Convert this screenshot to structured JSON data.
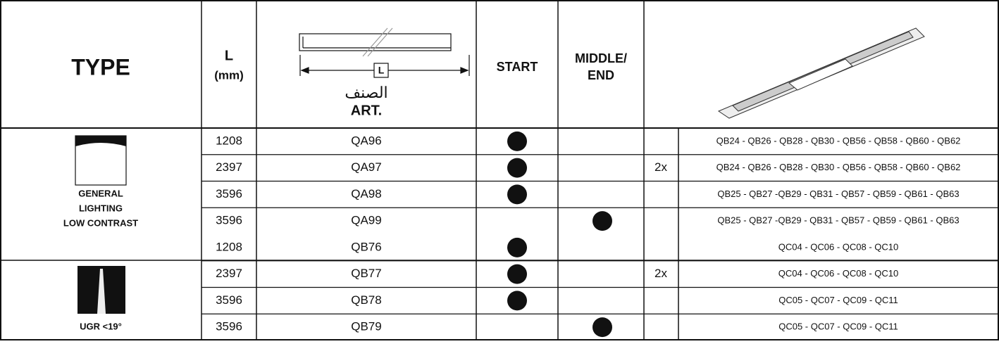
{
  "header": {
    "type": "TYPE",
    "length": "L",
    "length_unit": "(mm)",
    "diagram_label": "L",
    "art_arabic": "الصنف",
    "art": "ART.",
    "start": "START",
    "middle_end": [
      "MIDDLE/",
      "END"
    ]
  },
  "groups": [
    {
      "label": [
        "GENERAL",
        "LIGHTING",
        "LOW CONTRAST"
      ],
      "rows": [
        {
          "length": "1208",
          "art": "QA96",
          "start": true,
          "middle": false,
          "qty": null,
          "codes": "QB24 - QB26 - QB28 - QB30 - QB56 - QB58 - QB60 - QB62"
        },
        {
          "length": "2397",
          "art": "QA97",
          "start": true,
          "middle": false,
          "qty": "2x",
          "codes": "QB24 - QB26 - QB28 - QB30 - QB56 - QB58 - QB60 - QB62"
        },
        {
          "length": "3596",
          "art": "QA98",
          "start": true,
          "middle": false,
          "qty": null,
          "codes": "QB25 - QB27 -QB29 - QB31 - QB57 - QB59 - QB61 - QB63"
        },
        {
          "length": "3596",
          "art": "QA99",
          "start": false,
          "middle": true,
          "qty": null,
          "codes": "QB25 - QB27 -QB29 - QB31 - QB57 - QB59 - QB61 - QB63"
        }
      ]
    },
    {
      "label": [
        "UGR <19°"
      ],
      "rows": [
        {
          "length": "1208",
          "art": "QB76",
          "start": true,
          "middle": false,
          "qty": null,
          "codes": "QC04 - QC06 - QC08 - QC10"
        },
        {
          "length": "2397",
          "art": "QB77",
          "start": true,
          "middle": false,
          "qty": "2x",
          "codes": "QC04 - QC06 - QC08 - QC10"
        },
        {
          "length": "3596",
          "art": "QB78",
          "start": true,
          "middle": false,
          "qty": null,
          "codes": "QC05 - QC07 - QC09 - QC11"
        },
        {
          "length": "3596",
          "art": "QB79",
          "start": false,
          "middle": true,
          "qty": null,
          "codes": "QC05 - QC07 - QC09 - QC11"
        }
      ]
    }
  ]
}
